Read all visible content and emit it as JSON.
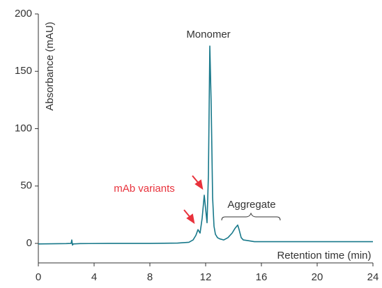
{
  "chart_data": {
    "type": "line",
    "x_label": "Retention time (min)",
    "y_label": "Absorbance (mAU)",
    "xlim": [
      0,
      24
    ],
    "xticks": [
      0,
      4,
      8,
      12,
      16,
      20,
      24
    ],
    "ylim": [
      -17,
      200
    ],
    "yticks": [
      0,
      50,
      100,
      150,
      200
    ],
    "series": [
      {
        "color": "#17788a",
        "x": [
          0,
          1,
          2,
          2.35,
          2.4,
          2.45,
          2.5,
          3,
          5,
          8,
          10,
          10.8,
          11.1,
          11.3,
          11.45,
          11.6,
          11.75,
          11.9,
          12.0,
          12.1,
          12.2,
          12.3,
          12.4,
          12.5,
          12.6,
          12.7,
          12.85,
          13.0,
          13.3,
          13.6,
          13.9,
          14.1,
          14.3,
          14.4,
          14.55,
          14.7,
          15.0,
          15.5,
          17,
          20,
          24
        ],
        "values": [
          -0.5,
          -0.3,
          -0.2,
          0,
          3,
          -1.5,
          -0.5,
          -0.2,
          0,
          0,
          0.3,
          1,
          3,
          7,
          12,
          9,
          22,
          42,
          30,
          18,
          60,
          172,
          120,
          40,
          15,
          8,
          5,
          4,
          3,
          5,
          9,
          13,
          16,
          12,
          5,
          3,
          2.5,
          1.5,
          1.5,
          1.5,
          1.5
        ]
      }
    ],
    "annotations": [
      {
        "text": "Monomer",
        "color": "#333333"
      },
      {
        "text": "mAb variants",
        "color": "#e8323c"
      },
      {
        "text": "Aggregate",
        "color": "#333333"
      }
    ]
  }
}
